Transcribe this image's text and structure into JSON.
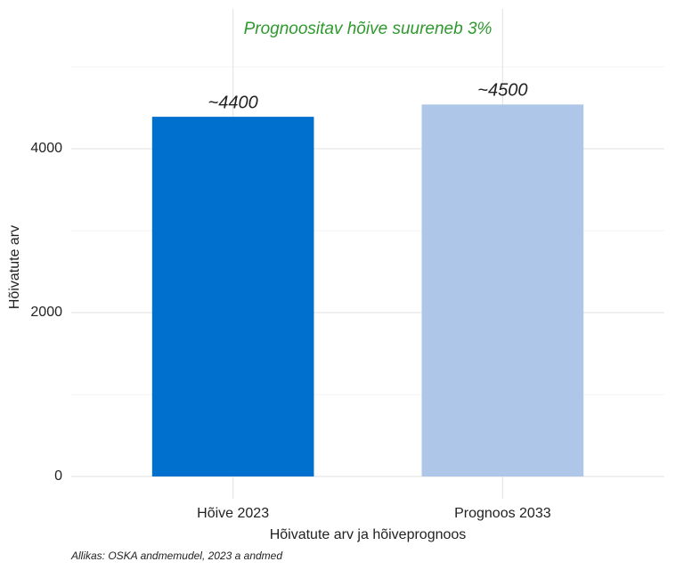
{
  "chart_data": {
    "type": "bar",
    "title": "Prognoositav hõive suureneb 3%",
    "x_label": "Hõivatute arv ja hõiveprognoos",
    "y_label": "Hõivatute arv",
    "caption": "Allikas: OSKA andmemudel, 2023 a andmed",
    "categories": [
      "Hõive 2023",
      "Prognoos 2033"
    ],
    "values": [
      4390,
      4540
    ],
    "value_labels": [
      "~4400",
      "~4500"
    ],
    "colors": [
      "#0070cf",
      "#aec7e8"
    ],
    "ylim": [
      0,
      5000
    ],
    "yticks": [
      0,
      2000,
      4000
    ],
    "minor_yticks": [
      1000,
      3000,
      5000
    ],
    "grid": true
  }
}
